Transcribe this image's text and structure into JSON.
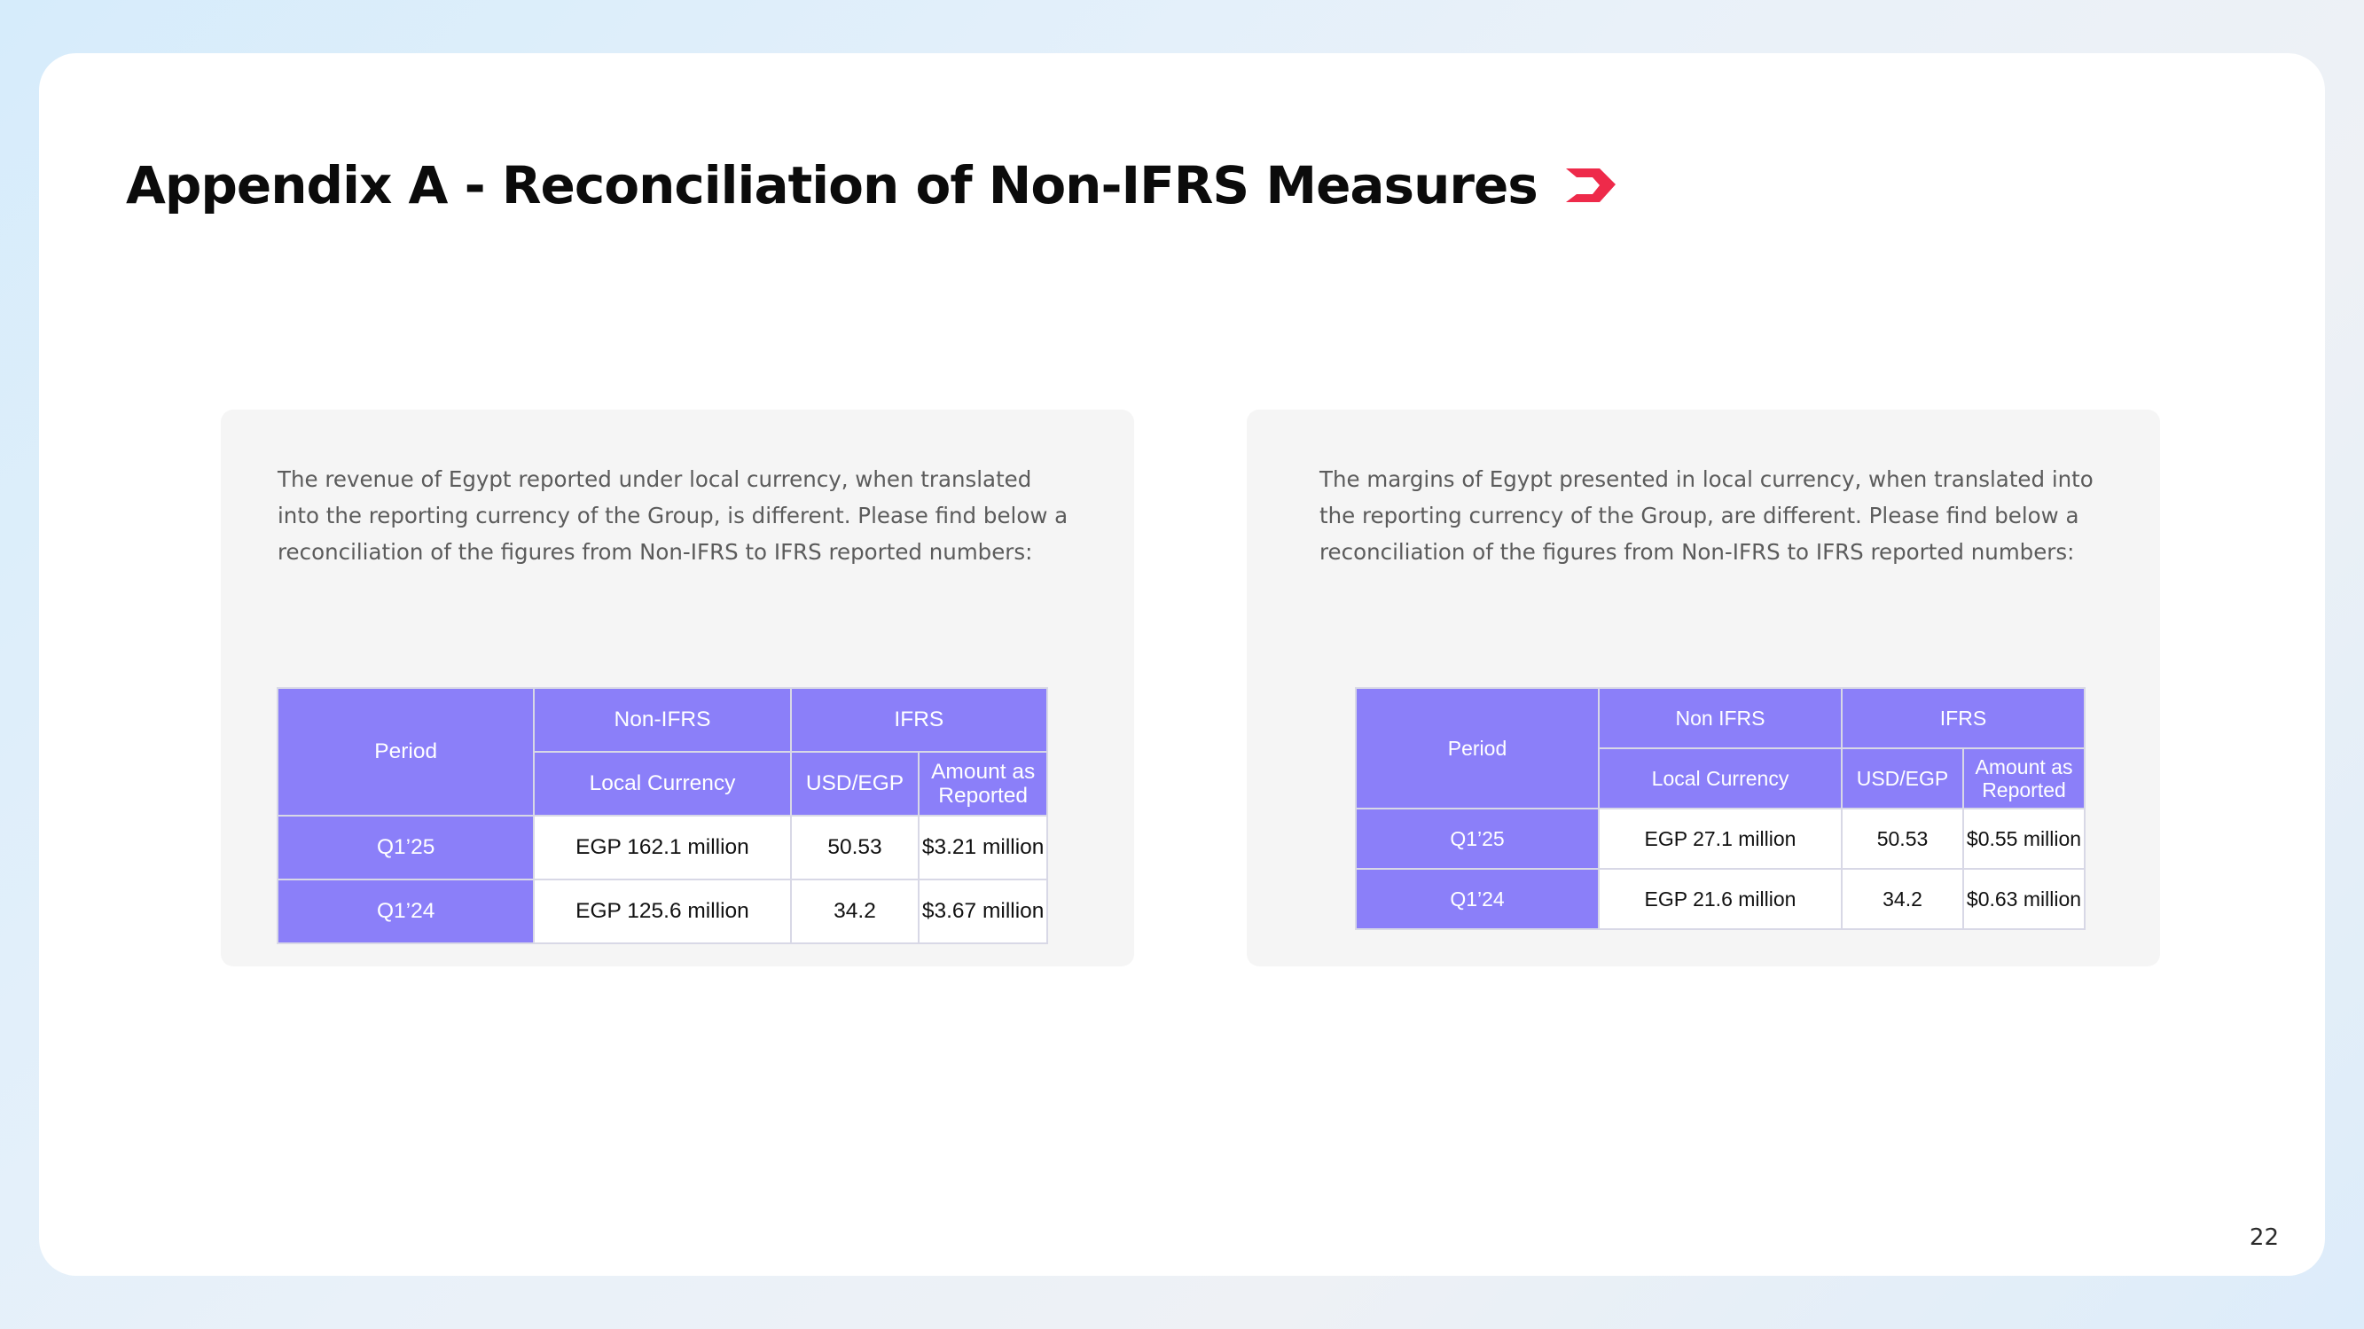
{
  "title": "Appendix A - Reconciliation of Non-IFRS Measures",
  "brand_color": "#ee2a4a",
  "header_color": "#8b7ff9",
  "page_number": "22",
  "left_panel": {
    "description": "The revenue of Egypt reported under local currency, when translated into the reporting currency of the Group, is different. Please find below a reconciliation of the figures from Non-IFRS to IFRS reported numbers:",
    "table": {
      "period_header": "Period",
      "group_nonifrs": "Non-IFRS",
      "group_ifrs": "IFRS",
      "col_local": "Local Currency",
      "col_rate": "USD/EGP",
      "col_reported": "Amount as Reported",
      "rows": [
        {
          "period": "Q1’25",
          "local": "EGP 162.1 million",
          "rate": "50.53",
          "reported": "$3.21 million"
        },
        {
          "period": "Q1’24",
          "local": "EGP 125.6 million",
          "rate": "34.2",
          "reported": "$3.67 million"
        }
      ]
    }
  },
  "right_panel": {
    "description": "The margins of Egypt presented in local currency, when translated into the reporting currency of the Group, are different. Please find below a reconciliation of the figures from Non-IFRS to IFRS reported numbers:",
    "table": {
      "period_header": "Period",
      "group_nonifrs": "Non IFRS",
      "group_ifrs": "IFRS",
      "col_local": "Local Currency",
      "col_rate": "USD/EGP",
      "col_reported": "Amount as Reported",
      "rows": [
        {
          "period": "Q1’25",
          "local": "EGP 27.1 million",
          "rate": "50.53",
          "reported": "$0.55 million"
        },
        {
          "period": "Q1’24",
          "local": "EGP 21.6 million",
          "rate": "34.2",
          "reported": "$0.63 million"
        }
      ]
    }
  }
}
